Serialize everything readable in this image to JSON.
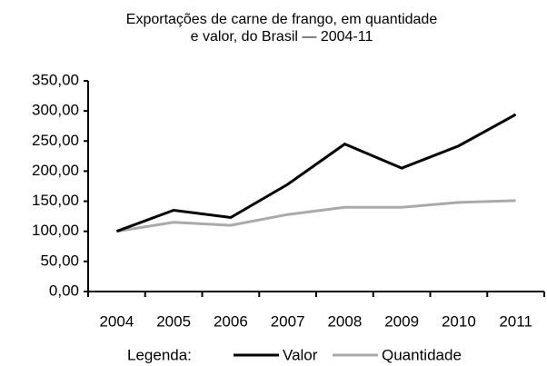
{
  "chart_data": {
    "type": "line",
    "title": [
      "Exportações de carne de frango, em quantidade",
      "e valor, do Brasil — 2004-11"
    ],
    "categories": [
      "2004",
      "2005",
      "2006",
      "2007",
      "2008",
      "2009",
      "2010",
      "2011"
    ],
    "series": [
      {
        "name": "Valor",
        "color": "#000000",
        "values": [
          100,
          135,
          123,
          178,
          245,
          205,
          242,
          294
        ]
      },
      {
        "name": "Quantidade",
        "color": "#aaaaaa",
        "values": [
          100,
          115,
          110,
          128,
          140,
          140,
          148,
          151
        ]
      }
    ],
    "legend_label": "Legenda:",
    "ylim": [
      0,
      350
    ],
    "yticks": [
      {
        "value": 0,
        "label": "0,00"
      },
      {
        "value": 50,
        "label": "50,00"
      },
      {
        "value": 100,
        "label": "100,00"
      },
      {
        "value": 150,
        "label": "150,00"
      },
      {
        "value": 200,
        "label": "200,00"
      },
      {
        "value": 250,
        "label": "250,00"
      },
      {
        "value": 300,
        "label": "300,00"
      },
      {
        "value": 350,
        "label": "350,00"
      }
    ],
    "grid": false
  }
}
